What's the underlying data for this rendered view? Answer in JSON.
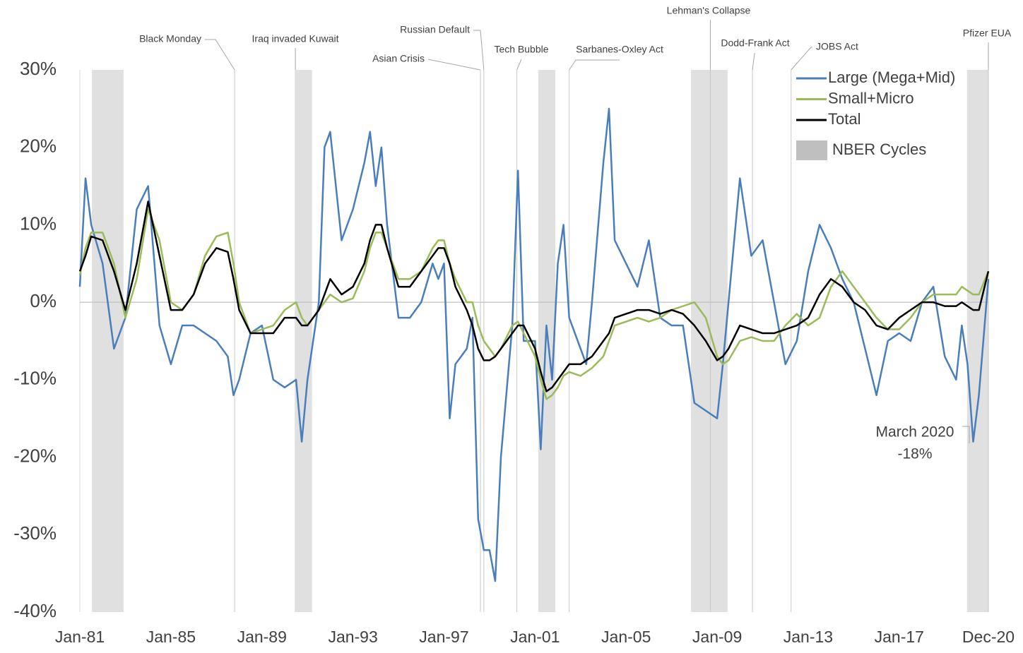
{
  "chart_data": {
    "type": "line",
    "x": [
      1981,
      1981.25,
      1981.5,
      1982,
      1982.5,
      1983,
      1983.5,
      1984,
      1984.5,
      1985,
      1985.5,
      1986,
      1986.5,
      1987,
      1987.5,
      1987.75,
      1988,
      1988.5,
      1989,
      1989.5,
      1990,
      1990.5,
      1990.75,
      1991,
      1991.5,
      1991.75,
      1992,
      1992.5,
      1993,
      1993.5,
      1993.75,
      1994,
      1994.25,
      1994.5,
      1995,
      1995.5,
      1996,
      1996.5,
      1996.75,
      1997,
      1997.25,
      1997.5,
      1998,
      1998.25,
      1998.5,
      1998.75,
      1999,
      1999.25,
      1999.5,
      2000,
      2000.25,
      2000.5,
      2001,
      2001.25,
      2001.5,
      2001.75,
      2002,
      2002.25,
      2002.5,
      2003,
      2003.25,
      2003.5,
      2004,
      2004.25,
      2004.5,
      2005,
      2005.5,
      2006,
      2006.5,
      2007,
      2007.5,
      2008,
      2008.5,
      2009,
      2009.25,
      2009.5,
      2010,
      2010.5,
      2011,
      2011.5,
      2012,
      2012.5,
      2013,
      2013.5,
      2014,
      2014.5,
      2015,
      2015.5,
      2016,
      2016.5,
      2017,
      2017.5,
      2018,
      2018.5,
      2019,
      2019.5,
      2019.75,
      2020,
      2020.25,
      2020.5,
      2020.917
    ],
    "series": [
      {
        "name": "Large (Mega+Mid)",
        "color": "#4a7ebb",
        "values": [
          2,
          16,
          10,
          5,
          -6,
          -2,
          12,
          15,
          -3,
          -8,
          -3,
          -3,
          -4,
          -5,
          -7,
          -12,
          -10,
          -4,
          -3,
          -10,
          -11,
          -10,
          -18,
          -10,
          0,
          20,
          22,
          8,
          12,
          18,
          22,
          15,
          20,
          10,
          -2,
          -2,
          0,
          5,
          3,
          5,
          -15,
          -8,
          -6,
          -2,
          -28,
          -32,
          -32,
          -36,
          -20,
          -3,
          17,
          -5,
          -5,
          -19,
          -3,
          -10,
          5,
          10,
          -2,
          -6,
          -8,
          0,
          18,
          25,
          8,
          5,
          2,
          8,
          -2,
          -3,
          -3,
          -13,
          -14,
          -15,
          -8,
          0,
          16,
          6,
          8,
          0,
          -8,
          -5,
          4,
          10,
          7,
          3,
          0,
          -6,
          -12,
          -5,
          -4,
          -5,
          0,
          2,
          -7,
          -10,
          -3,
          -8,
          -18,
          -12,
          3
        ]
      },
      {
        "name": "Small+Micro",
        "color": "#9bbb59",
        "values": [
          3.5,
          7,
          9,
          9,
          5,
          -2,
          3,
          12,
          8,
          0,
          -1,
          1,
          6,
          8.5,
          9,
          5,
          0,
          -4,
          -3.5,
          -3,
          -1,
          0,
          -2,
          -3,
          -1,
          0,
          1,
          0,
          0.5,
          4,
          7,
          9,
          9,
          7,
          3,
          3,
          4,
          7,
          8,
          8,
          5,
          3,
          0,
          0,
          -3,
          -5,
          -6,
          -7,
          -6,
          -3,
          -2.5,
          -4,
          -7,
          -10,
          -12.5,
          -12,
          -11,
          -9.5,
          -9,
          -9.5,
          -9,
          -8.5,
          -7,
          -5,
          -3,
          -2.5,
          -2,
          -2.5,
          -2,
          -1,
          -0.5,
          0,
          -2,
          -7,
          -8,
          -7.5,
          -5,
          -4.5,
          -5,
          -5,
          -3,
          -1.5,
          -3,
          -2,
          2,
          4,
          2,
          0,
          -2,
          -3.5,
          -3.5,
          -2,
          0,
          1,
          1,
          1,
          2,
          1.5,
          1,
          1,
          4
        ]
      },
      {
        "name": "Total",
        "color": "#000000",
        "values": [
          4,
          6,
          8.5,
          8,
          4,
          -1,
          5,
          13,
          6,
          -1,
          -1,
          1,
          5,
          7,
          6.5,
          3,
          -1,
          -4,
          -4,
          -4,
          -2,
          -2,
          -3,
          -3,
          -1,
          1,
          3,
          1,
          2,
          5,
          8,
          10,
          10,
          7,
          2,
          2,
          4,
          6,
          7,
          7,
          5,
          2,
          -1,
          -3,
          -6,
          -7.5,
          -7.5,
          -7,
          -6,
          -4,
          -3,
          -3,
          -6,
          -9,
          -11.5,
          -11,
          -10,
          -9,
          -8,
          -8,
          -7.5,
          -7,
          -5,
          -4,
          -2,
          -1.5,
          -1,
          -1,
          -1.5,
          -1,
          -1.5,
          -3,
          -5,
          -7.5,
          -7,
          -6,
          -3,
          -3.5,
          -4,
          -4,
          -3.5,
          -3,
          -2,
          1,
          3,
          2,
          0,
          -1,
          -3,
          -3.5,
          -2,
          -1,
          0,
          0,
          -0.5,
          -0.5,
          0,
          -0.5,
          -1,
          -1,
          4
        ]
      }
    ],
    "xlim": [
      1981,
      2020.917
    ],
    "xticks": [
      {
        "value": 1981,
        "label": "Jan-81"
      },
      {
        "value": 1985,
        "label": "Jan-85"
      },
      {
        "value": 1989,
        "label": "Jan-89"
      },
      {
        "value": 1993,
        "label": "Jan-93"
      },
      {
        "value": 1997,
        "label": "Jan-97"
      },
      {
        "value": 2001,
        "label": "Jan-01"
      },
      {
        "value": 2005,
        "label": "Jan-05"
      },
      {
        "value": 2009,
        "label": "Jan-09"
      },
      {
        "value": 2013,
        "label": "Jan-13"
      },
      {
        "value": 2017,
        "label": "Jan-17"
      },
      {
        "value": 2020.917,
        "label": "Dec-20"
      }
    ],
    "ylim": [
      -40,
      30
    ],
    "yticks": [
      {
        "value": -40,
        "label": "-40%"
      },
      {
        "value": -30,
        "label": "-30%"
      },
      {
        "value": -20,
        "label": "-20%"
      },
      {
        "value": -10,
        "label": "-10%"
      },
      {
        "value": 0,
        "label": "0%"
      },
      {
        "value": 10,
        "label": "10%"
      },
      {
        "value": 20,
        "label": "20%"
      },
      {
        "value": 30,
        "label": "30%"
      }
    ],
    "nber_label": "NBER Cycles",
    "nber_color": "#e0e0e0",
    "nber_cycles": [
      [
        1981.53,
        1982.92
      ],
      [
        1990.5,
        1991.2
      ],
      [
        2001.14,
        2001.89
      ],
      [
        2007.85,
        2009.46
      ],
      [
        2019.98,
        2020.917
      ]
    ],
    "events": [
      {
        "label": "Black Monday",
        "x": 1987.8
      },
      {
        "label": "Iraq invaded Kuwait",
        "x": 1990.47
      },
      {
        "label": "Asian Crisis",
        "x": 1998.6
      },
      {
        "label": "Russian Default",
        "x": 1998.75
      },
      {
        "label": "Tech Bubble",
        "x": 2000.2
      },
      {
        "label": "Sarbanes-Oxley Act",
        "x": 2002.5
      },
      {
        "label": "Lehman's Collapse",
        "x": 2008.7
      },
      {
        "label": "Dodd-Frank Act",
        "x": 2010.55
      },
      {
        "label": "JOBS Act",
        "x": 2012.25
      },
      {
        "label": "Pfizer EUA",
        "x": 2020.917
      }
    ],
    "annotation": [
      "March 2020",
      "-18%"
    ]
  }
}
